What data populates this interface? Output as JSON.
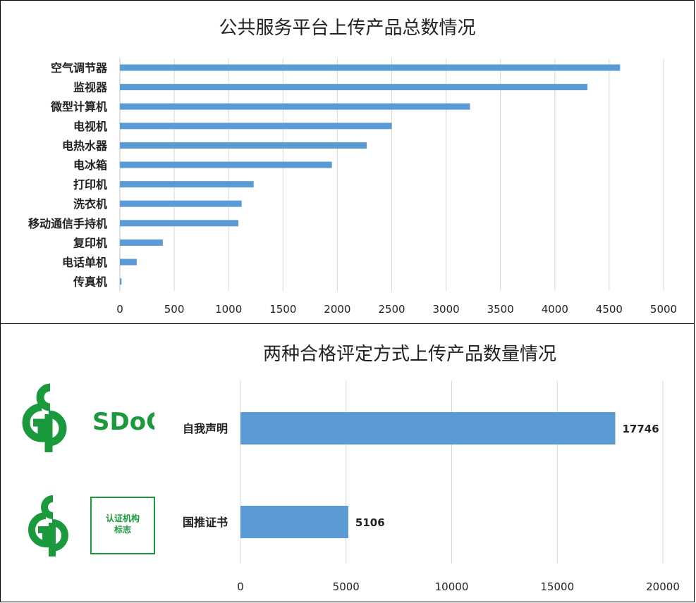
{
  "chart_data": [
    {
      "type": "bar",
      "orientation": "horizontal",
      "title": "公共服务平台上传产品总数情况",
      "categories": [
        "空气调节器",
        "监视器",
        "微型计算机",
        "电视机",
        "电热水器",
        "电冰箱",
        "打印机",
        "洗衣机",
        "移动通信手持机",
        "复印机",
        "电话单机",
        "传真机"
      ],
      "values": [
        4600,
        4300,
        3220,
        2500,
        2270,
        1950,
        1230,
        1120,
        1090,
        395,
        155,
        15
      ],
      "ticks": [
        "0",
        "500",
        "1000",
        "1500",
        "2000",
        "2500",
        "3000",
        "3500",
        "4000",
        "4500",
        "5000"
      ],
      "xlim": [
        0,
        5000
      ],
      "grid": true,
      "bar_color": "#5b9bd5"
    },
    {
      "type": "bar",
      "orientation": "horizontal",
      "title": "两种合格评定方式上传产品数量情况",
      "categories": [
        "自我声明",
        "国推证书"
      ],
      "values": [
        17746,
        5106
      ],
      "data_labels": [
        "17746",
        "5106"
      ],
      "ticks": [
        "0",
        "5000",
        "10000",
        "15000",
        "20000"
      ],
      "xlim": [
        0,
        20000
      ],
      "grid": true,
      "bar_color": "#5b9bd5"
    }
  ],
  "logos": {
    "sdoc_text": "SDoC",
    "cert_box_line1": "认证机构",
    "cert_box_line2": "标志",
    "logo_color": "#1a9a3c"
  }
}
